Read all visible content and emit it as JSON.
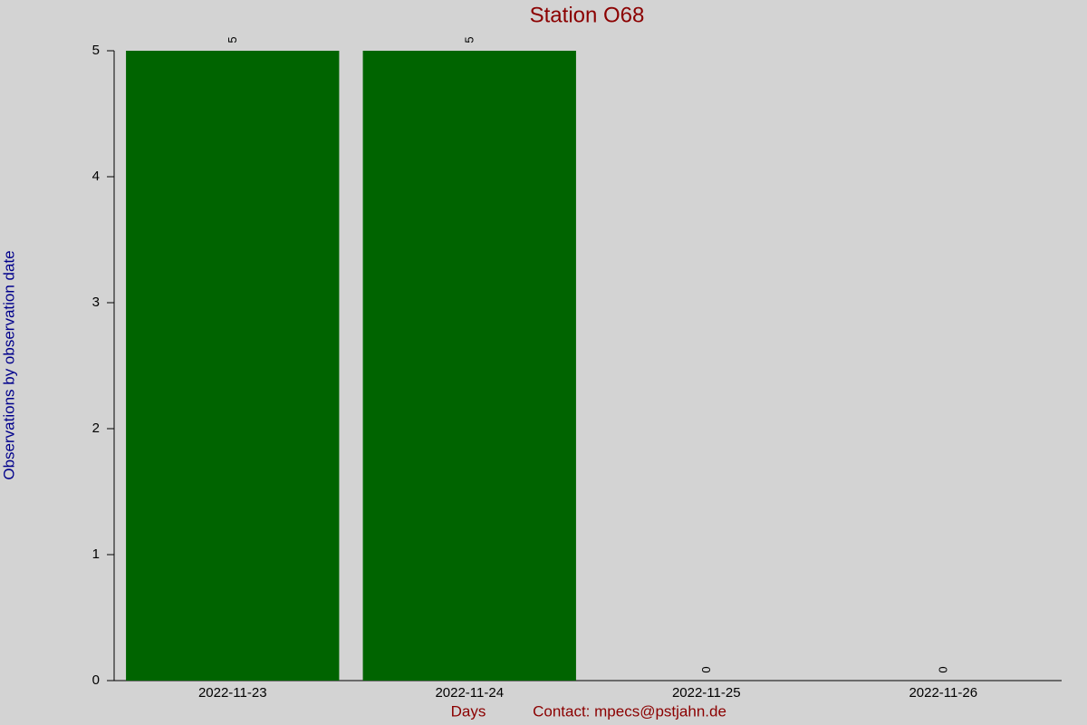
{
  "chart_data": {
    "type": "bar",
    "title": "Station O68",
    "x_label": "Days",
    "y_label": "Observations by observation date",
    "footer": "Contact: mpecs@pstjahn.de",
    "categories": [
      "2022-11-23",
      "2022-11-24",
      "2022-11-25",
      "2022-11-26"
    ],
    "values": [
      5,
      5,
      0,
      0
    ],
    "color": "#006400",
    "ylim": [
      0,
      5
    ],
    "yticks": [
      0,
      1,
      2,
      3,
      4,
      5
    ],
    "grid": false
  }
}
